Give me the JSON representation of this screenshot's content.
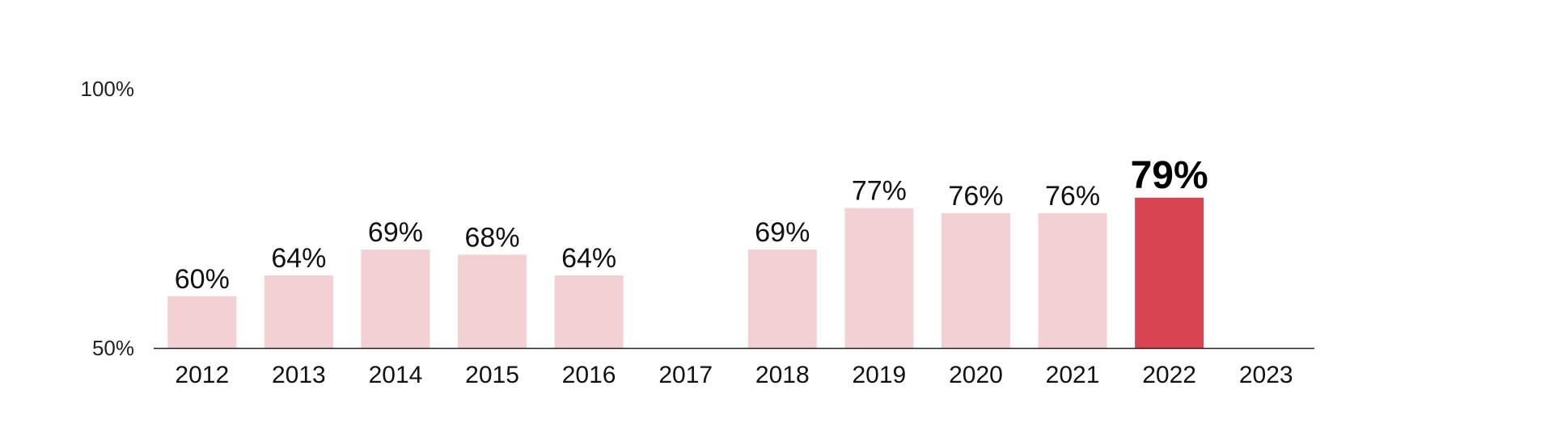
{
  "chart_data": {
    "type": "bar",
    "categories": [
      "2012",
      "2013",
      "2014",
      "2015",
      "2016",
      "2017",
      "2018",
      "2019",
      "2020",
      "2021",
      "2022",
      "2023"
    ],
    "values": [
      60,
      64,
      69,
      68,
      64,
      null,
      69,
      77,
      76,
      76,
      79,
      null
    ],
    "data_labels": [
      "60%",
      "64%",
      "69%",
      "68%",
      "64%",
      "",
      "69%",
      "77%",
      "76%",
      "76%",
      "79%",
      ""
    ],
    "highlight_index": 10,
    "ylim": [
      50,
      100
    ],
    "yticks": [
      50,
      100
    ],
    "ytick_labels": [
      "50%",
      "100%"
    ],
    "grid": false,
    "colors": {
      "bar": "#f2d1d4",
      "highlight": "#d94452",
      "axis": "#222222"
    }
  }
}
